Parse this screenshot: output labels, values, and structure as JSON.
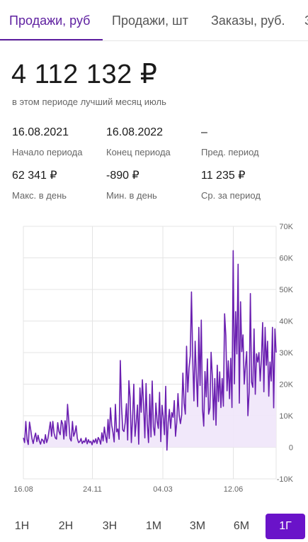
{
  "tabs": [
    {
      "label": "Продажи, руб",
      "active": true
    },
    {
      "label": "Продажи, шт",
      "active": false
    },
    {
      "label": "Заказы, руб.",
      "active": false
    },
    {
      "label": "З",
      "active": false
    }
  ],
  "summary": {
    "total": "4 112 132  ₽",
    "subtitle": "в этом периоде лучший месяц июль"
  },
  "stats": {
    "period_start": {
      "value": "16.08.2021",
      "label": "Начало периода"
    },
    "period_end": {
      "value": "16.08.2022",
      "label": "Конец периода"
    },
    "prev_period": {
      "value": "–",
      "label": "Пред. период"
    },
    "max_day": {
      "value": "62 341 ₽",
      "label": "Макс. в день"
    },
    "min_day": {
      "value": "-890 ₽",
      "label": "Мин. в день"
    },
    "avg_period": {
      "value": "11 235 ₽",
      "label": "Ср. за период"
    }
  },
  "chart_data": {
    "type": "area",
    "x_tick_labels": [
      "16.08",
      "24.11",
      "04.03",
      "12.06"
    ],
    "y_tick_labels": [
      "70K",
      "60K",
      "50K",
      "40K",
      "30K",
      "20K",
      "10K",
      "0",
      "-10K"
    ],
    "ylim": [
      -10000,
      70000
    ],
    "grid": true,
    "line_color": "#6a1fb0",
    "fill_color": "#efe6f9",
    "x_start": "16.08.2021",
    "x_end": "16.08.2022",
    "series": [
      {
        "values": [
          3000,
          1500,
          8200,
          2500,
          900,
          8000,
          5500,
          2800,
          1200,
          3200,
          4500,
          1800,
          3800,
          2000,
          1000,
          2600,
          2200,
          1200,
          4000,
          1500,
          2800,
          5400,
          8000,
          3500,
          8200,
          4500,
          3000,
          2600,
          7800,
          5000,
          4000,
          8500,
          7400,
          2600,
          8400,
          3600,
          13600,
          8500,
          2800,
          2000,
          8200,
          3500,
          4700,
          6800,
          2800,
          1500,
          1800,
          2800,
          1200,
          2000,
          1600,
          3000,
          1100,
          2400,
          1500,
          1900,
          800,
          2300,
          1500,
          2700,
          1200,
          3100,
          2400,
          1000,
          4600,
          2000,
          6400,
          3500,
          1500,
          8800,
          2800,
          12500,
          7000,
          4800,
          1700,
          13600,
          4900,
          5800,
          2500,
          27500,
          13000,
          5500,
          5000,
          7900,
          13800,
          2300,
          21100,
          15700,
          1500,
          9100,
          20000,
          3500,
          8000,
          13400,
          1000,
          18800,
          11100,
          21400,
          13500,
          3000,
          20200,
          7500,
          1500,
          16800,
          3300,
          21000,
          6400,
          3800,
          14000,
          8300,
          6000,
          17400,
          1800,
          13300,
          9600,
          4000,
          19300,
          -900,
          7900,
          12000,
          6000,
          11000,
          9500,
          14800,
          3500,
          7900,
          17000,
          10100,
          7500,
          10200,
          23500,
          14000,
          10500,
          32000,
          17500,
          25200,
          29000,
          49200,
          28500,
          14700,
          33600,
          23000,
          12900,
          38000,
          19600,
          40300,
          12000,
          6700,
          24000,
          16000,
          28000,
          10500,
          12400,
          30100,
          22500,
          8700,
          21800,
          7000,
          26000,
          14500,
          23900,
          12600,
          21800,
          13000,
          42300,
          35400,
          17900,
          27400,
          15400,
          28200,
          12600,
          62300,
          20100,
          43000,
          29600,
          58000,
          14000,
          46100,
          30300,
          35600,
          20000,
          25800,
          30300,
          10000,
          17500,
          48700,
          20600,
          19000,
          37500,
          16800,
          29600,
          27000,
          30000,
          21000,
          28100,
          39500,
          17600,
          38000,
          26000,
          33600,
          16200,
          27000,
          21000,
          38000,
          12500,
          37500,
          30000
        ]
      }
    ]
  },
  "ranges": [
    {
      "label": "1Н",
      "active": false
    },
    {
      "label": "2Н",
      "active": false
    },
    {
      "label": "3Н",
      "active": false
    },
    {
      "label": "1М",
      "active": false
    },
    {
      "label": "3М",
      "active": false
    },
    {
      "label": "6М",
      "active": false
    },
    {
      "label": "1Г",
      "active": true
    }
  ]
}
